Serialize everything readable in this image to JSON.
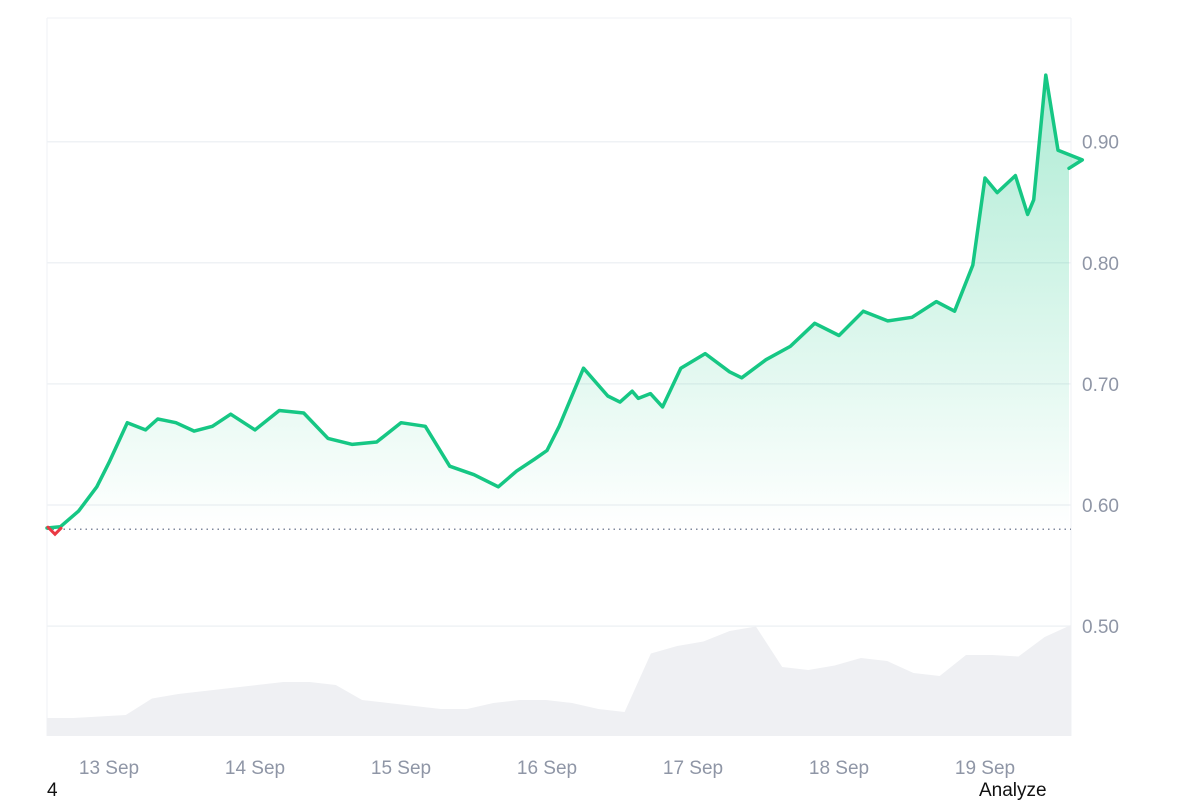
{
  "footer": {
    "left_text": "4",
    "right_text": "Analyze"
  },
  "colors": {
    "price_line": "#16c784",
    "price_fill_top": "#16c784",
    "negative_segment": "#ea3943",
    "volume_fill": "#eff0f3",
    "grid": "#eff2f5",
    "axis_label": "#8f96a6",
    "baseline_dots": "#808a9d"
  },
  "chart_data": {
    "type": "area",
    "title": "",
    "xlabel": "",
    "ylabel": "",
    "x_ticks": [
      "13 Sep",
      "14 Sep",
      "15 Sep",
      "16 Sep",
      "17 Sep",
      "18 Sep",
      "19 Sep"
    ],
    "y_ticks": [
      "0.90",
      "0.80",
      "0.70",
      "0.60",
      "0.50"
    ],
    "y_tick_values": [
      0.9,
      0.8,
      0.7,
      0.6,
      0.5
    ],
    "ylim": [
      0.415,
      1.0
    ],
    "baseline_value": 0.58,
    "grid": true,
    "series": [
      {
        "values_time": [
          "12 Sep 14:00",
          "12 Sep 16:00",
          "12 Sep 19:00",
          "12 Sep 22:00",
          "13 Sep 00:00",
          "13 Sep 03:00",
          "13 Sep 06:00",
          "13 Sep 08:00",
          "13 Sep 09:00",
          "13 Sep 11:00",
          "13 Sep 14:00",
          "13 Sep 17:00",
          "13 Sep 20:00",
          "14 Sep 00:00",
          "14 Sep 04:00",
          "14 Sep 08:00",
          "14 Sep 12:00",
          "14 Sep 16:00",
          "14 Sep 20:00",
          "15 Sep 00:00",
          "15 Sep 04:00",
          "15 Sep 08:00",
          "15 Sep 12:00",
          "15 Sep 16:00",
          "15 Sep 19:00",
          "15 Sep 22:00",
          "16 Sep 00:00",
          "16 Sep 02:00",
          "16 Sep 06:00",
          "16 Sep 10:00",
          "16 Sep 12:00",
          "16 Sep 14:00",
          "16 Sep 15:00",
          "16 Sep 17:00",
          "16 Sep 19:00",
          "16 Sep 22:00",
          "17 Sep 02:00",
          "17 Sep 06:00",
          "17 Sep 08:00",
          "17 Sep 12:00",
          "17 Sep 16:00",
          "17 Sep 20:00",
          "18 Sep 00:00",
          "18 Sep 04:00",
          "18 Sep 08:00",
          "18 Sep 12:00",
          "18 Sep 16:00",
          "18 Sep 19:00",
          "18 Sep 22:00",
          "19 Sep 00:00",
          "19 Sep 02:00",
          "19 Sep 05:00",
          "19 Sep 07:00",
          "19 Sep 08:00",
          "19 Sep 10:00",
          "19 Sep 12:00",
          "19 Sep 16:00",
          "19 Sep 20:00"
        ],
        "values": [
          0.581,
          0.582,
          0.595,
          0.615,
          0.635,
          0.668,
          0.662,
          0.671,
          0.67,
          0.668,
          0.661,
          0.665,
          0.675,
          0.662,
          0.678,
          0.676,
          0.655,
          0.65,
          0.652,
          0.668,
          0.665,
          0.632,
          0.625,
          0.615,
          0.628,
          0.638,
          0.645,
          0.665,
          0.713,
          0.69,
          0.685,
          0.694,
          0.688,
          0.692,
          0.681,
          0.713,
          0.725,
          0.71,
          0.705,
          0.72,
          0.731,
          0.75,
          0.74,
          0.76,
          0.752,
          0.755,
          0.768,
          0.76,
          0.798,
          0.87,
          0.858,
          0.872,
          0.84,
          0.852,
          0.955,
          0.893,
          0.885,
          0.878
        ]
      }
    ],
    "volume": {
      "description_free": true,
      "values": [
        0.12,
        0.12,
        0.13,
        0.14,
        0.25,
        0.28,
        0.3,
        0.32,
        0.34,
        0.36,
        0.36,
        0.34,
        0.24,
        0.22,
        0.2,
        0.18,
        0.18,
        0.22,
        0.24,
        0.24,
        0.22,
        0.18,
        0.16,
        0.55,
        0.6,
        0.63,
        0.7,
        0.73,
        0.46,
        0.44,
        0.47,
        0.52,
        0.5,
        0.42,
        0.4,
        0.54,
        0.54,
        0.53,
        0.66,
        0.74
      ]
    }
  }
}
